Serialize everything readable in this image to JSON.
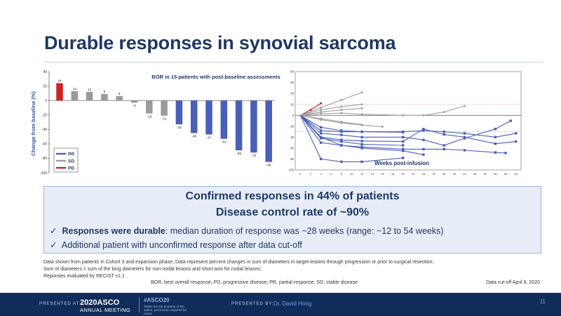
{
  "slide": {
    "title": "Durable responses in synovial sarcoma",
    "callout": {
      "line1": "Confirmed responses in 44% of patients",
      "line2": "Disease control rate of ~90%",
      "bullet1_bold": "Responses were durable",
      "bullet1_rest": ": median duration of response was ~28 weeks (range: ~12 to 54 weeks)",
      "bullet2": "Additional patient with unconfirmed response after data cut-off"
    },
    "footnotes": [
      "Data shown from patients in Cohort 3 and expansion phase; Data represent percent changes in sum of diameters in target lesions through progression or prior to surgical resection;",
      "Sum of diameters = sum of the long diameters for non-nodal lesions and short axis for nodal lesions;",
      "Reponses evaluated by RECIST v1.1"
    ],
    "abbreviations": "BOR, best overall response; PD, progressive disease; PR, partial response; SD, stable disease",
    "cutoff": "Data cut-off April 6, 2020",
    "page_number": "11"
  },
  "footer": {
    "presented_at": "PRESENTED AT:",
    "logo_line1": "2020ASCO",
    "logo_line2": "ANNUAL MEETING",
    "hashtag": "#ASCO20",
    "note": "Slides are the property of the author, permission required for reuse.",
    "presented_by": "PRESENTED BY:",
    "presenter": "Dr. David Hong"
  },
  "chart_data": [
    {
      "type": "bar",
      "title": "BOR in 15 patients with post-baseline assessments",
      "ylabel": "Change from baseline (%)",
      "ylim": [
        -100,
        40
      ],
      "yticks": [
        40,
        20,
        0,
        -20,
        -40,
        -60,
        -80,
        -100
      ],
      "values": [
        24,
        13,
        12,
        9,
        6,
        -3,
        -18,
        -21,
        -33,
        -45,
        -47,
        -53,
        -69,
        -72,
        -85
      ],
      "labels": [
        "24",
        "13",
        "12",
        "9",
        "6",
        "-3",
        "-18",
        "-21",
        "-33",
        "-45",
        "-47",
        "-53",
        "-69",
        "-72",
        "-85"
      ],
      "categories_bor": [
        "PD",
        "SD",
        "SD",
        "SD",
        "SD",
        "SD",
        "SD",
        "SD",
        "PR",
        "PR",
        "PR",
        "PR",
        "PR",
        "PR",
        "PR"
      ],
      "legend": [
        {
          "name": "PR",
          "color": "#4a5fb8"
        },
        {
          "name": "SD",
          "color": "#9a9a9a"
        },
        {
          "name": "PD",
          "color": "#cc2222"
        }
      ],
      "legend_position": "bottom-left",
      "grid": false
    },
    {
      "type": "line",
      "xlabel": "Weeks post-infusion",
      "xticks": [
        0,
        2,
        4,
        6,
        8,
        10,
        12,
        14,
        16,
        18,
        20,
        24,
        28,
        32,
        36,
        40,
        44,
        48,
        52,
        56,
        60,
        64
      ],
      "ylim": [
        -100,
        80
      ],
      "yticks": [
        80,
        60,
        40,
        20,
        0,
        -20,
        -40,
        -60,
        -80,
        -100
      ],
      "reference_lines": [
        20,
        0,
        -30
      ],
      "grid": false,
      "series": [
        {
          "bor": "PD",
          "color": "#cc2222",
          "x": [
            0,
            2,
            4
          ],
          "y": [
            0,
            10,
            22
          ]
        },
        {
          "bor": "SD",
          "color": "#a0a0a0",
          "x": [
            0,
            4,
            8,
            12
          ],
          "y": [
            0,
            14,
            28,
            42
          ]
        },
        {
          "bor": "SD",
          "color": "#a0a0a0",
          "x": [
            0,
            4,
            8,
            12
          ],
          "y": [
            0,
            10,
            16,
            20
          ]
        },
        {
          "bor": "SD",
          "color": "#a0a0a0",
          "x": [
            0,
            4,
            8,
            12
          ],
          "y": [
            0,
            6,
            10,
            13
          ]
        },
        {
          "bor": "SD",
          "color": "#a0a0a0",
          "x": [
            0,
            4,
            8,
            12,
            20,
            28,
            36,
            44
          ],
          "y": [
            0,
            3,
            4,
            2,
            0,
            0,
            6,
            17
          ]
        },
        {
          "bor": "SD",
          "color": "#a0a0a0",
          "x": [
            0,
            4,
            8,
            12
          ],
          "y": [
            0,
            -6,
            -12,
            -17
          ]
        },
        {
          "bor": "SD",
          "color": "#a0a0a0",
          "x": [
            0,
            4,
            8,
            12,
            16
          ],
          "y": [
            0,
            -8,
            -14,
            -18,
            -21
          ]
        },
        {
          "bor": "PR",
          "color": "#4a5fb8",
          "x": [
            0,
            4,
            8,
            12,
            20,
            28,
            36,
            44,
            56,
            64
          ],
          "y": [
            0,
            -22,
            -28,
            -30,
            -30,
            -28,
            -30,
            -33,
            -40,
            -33
          ]
        },
        {
          "bor": "PR",
          "color": "#4a5fb8",
          "x": [
            0,
            4,
            8,
            12,
            20
          ],
          "y": [
            0,
            -28,
            -30,
            -30,
            -31
          ]
        },
        {
          "bor": "PR",
          "color": "#4a5fb8",
          "x": [
            0,
            4,
            8,
            12,
            20,
            28,
            36,
            44,
            56,
            62
          ],
          "y": [
            0,
            -33,
            -36,
            -40,
            -40,
            -45,
            -55,
            -42,
            -25,
            -10
          ]
        },
        {
          "bor": "PR",
          "color": "#4a5fb8",
          "x": [
            0,
            4,
            8,
            12,
            20,
            28,
            36,
            44,
            56,
            64
          ],
          "y": [
            0,
            -40,
            -45,
            -47,
            -48,
            -25,
            -35,
            -40,
            -52,
            -48
          ]
        },
        {
          "bor": "PR",
          "color": "#4a5fb8",
          "x": [
            0,
            4,
            8,
            12,
            20
          ],
          "y": [
            0,
            -42,
            -48,
            -53,
            -55
          ]
        },
        {
          "bor": "PR",
          "color": "#4a5fb8",
          "x": [
            0,
            4,
            8,
            12,
            20,
            28
          ],
          "y": [
            0,
            -50,
            -55,
            -60,
            -65,
            -72
          ]
        },
        {
          "bor": "PR",
          "color": "#4a5fb8",
          "x": [
            0,
            4,
            8,
            12,
            20,
            28,
            36,
            44,
            56,
            60
          ],
          "y": [
            0,
            -40,
            -55,
            -58,
            -62,
            -62,
            -62,
            -64,
            -68,
            -69
          ]
        },
        {
          "bor": "PR",
          "color": "#4a5fb8",
          "x": [
            0,
            4,
            8,
            12,
            20
          ],
          "y": [
            0,
            -80,
            -85,
            -85,
            -78
          ]
        }
      ]
    }
  ]
}
